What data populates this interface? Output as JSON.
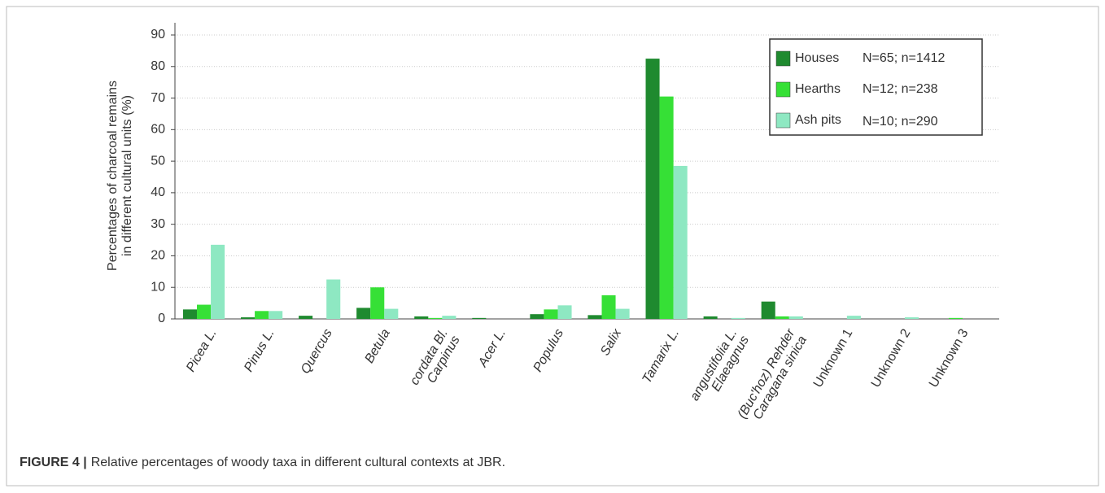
{
  "chart_data": {
    "type": "bar",
    "y_label": [
      "Percentages of charcoal remains",
      "in different cultural units (%)"
    ],
    "categories": [
      [
        "Picea L."
      ],
      [
        "Pinus L."
      ],
      [
        "Quercus"
      ],
      [
        "Betula"
      ],
      [
        "Carpinus",
        "cordata Bl."
      ],
      [
        "Acer L."
      ],
      [
        "Populus"
      ],
      [
        "Salix"
      ],
      [
        "Tamarix L."
      ],
      [
        "Elaeagnus",
        "angustifolia L."
      ],
      [
        "Caragana sinica",
        "(Buc'hoz) Rehder"
      ],
      [
        "Unknown 1"
      ],
      [
        "Unknown 2"
      ],
      [
        "Unknown 3"
      ]
    ],
    "series": [
      {
        "name": "Houses",
        "sample": "N=65; n=1412",
        "color": "#1f8a2f",
        "values": [
          3,
          0.5,
          1,
          3.5,
          0.8,
          0.3,
          1.5,
          1.2,
          82.5,
          0.8,
          5.5,
          0,
          0,
          0
        ]
      },
      {
        "name": "Hearths",
        "sample": "N=12; n=238",
        "color": "#36e036",
        "values": [
          4.5,
          2.5,
          0,
          10,
          0.3,
          0,
          3,
          7.5,
          70.5,
          0,
          0.8,
          0,
          0,
          0.3
        ]
      },
      {
        "name": "Ash pits",
        "sample": "N=10; n=290",
        "color": "#8ee8c2",
        "values": [
          23.5,
          2.5,
          12.5,
          3.2,
          1,
          0,
          4.3,
          3.2,
          48.5,
          0.3,
          0.8,
          1,
          0.5,
          0
        ]
      }
    ],
    "ylim": [
      0,
      90
    ],
    "yticks": [
      0,
      10,
      20,
      30,
      40,
      50,
      60,
      70,
      80,
      90
    ],
    "grid": true,
    "legend": "upper right"
  },
  "caption": {
    "label": "FIGURE 4 |",
    "text": "Relative percentages of woody taxa in different cultural contexts at JBR."
  }
}
